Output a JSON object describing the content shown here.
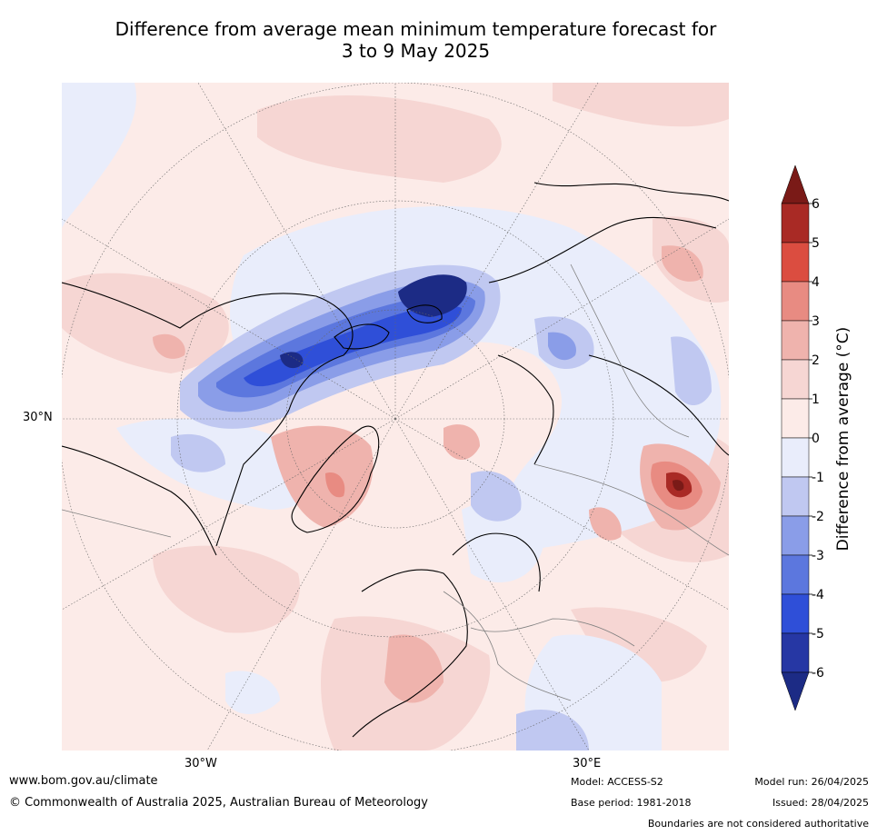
{
  "title": {
    "line1": "Difference from average mean minimum temperature forecast for",
    "line2": "3 to 9 May 2025"
  },
  "map": {
    "projection": "north-polar-stereographic",
    "lat_label": "30°N",
    "lon_labels": [
      "30°W",
      "30°E"
    ],
    "colors": {
      "ocean_base": "#fcebe8",
      "land_line": "#000000",
      "boundary_line": "#808080",
      "grid_line": "#666666"
    }
  },
  "colorbar": {
    "label": "Difference from average (°C)",
    "ticks": [
      "6",
      "5",
      "4",
      "3",
      "2",
      "1",
      "0",
      "-1",
      "-2",
      "-3",
      "-4",
      "-5",
      "-6"
    ],
    "bins": [
      {
        "from": 6,
        "to": 7,
        "color": "#7a1a17"
      },
      {
        "from": 5,
        "to": 6,
        "color": "#a92a25"
      },
      {
        "from": 4,
        "to": 5,
        "color": "#db4d40"
      },
      {
        "from": 3,
        "to": 4,
        "color": "#e88b82"
      },
      {
        "from": 2,
        "to": 3,
        "color": "#efb3ad"
      },
      {
        "from": 1,
        "to": 2,
        "color": "#f6d6d3"
      },
      {
        "from": 0,
        "to": 1,
        "color": "#fcebe8"
      },
      {
        "from": -1,
        "to": 0,
        "color": "#e9edfb"
      },
      {
        "from": -2,
        "to": -1,
        "color": "#c0c8f1"
      },
      {
        "from": -3,
        "to": -2,
        "color": "#8a9de8"
      },
      {
        "from": -4,
        "to": -3,
        "color": "#5c77de"
      },
      {
        "from": -5,
        "to": -4,
        "color": "#2f4fd8"
      },
      {
        "from": -6,
        "to": -5,
        "color": "#2637a4"
      },
      {
        "from": -7,
        "to": -6,
        "color": "#1c2b85"
      }
    ]
  },
  "footer": {
    "website": "www.bom.gov.au/climate",
    "copyright": "© Commonwealth of Australia 2025, Australian Bureau of Meteorology",
    "model": "Model: ACCESS-S2",
    "base_period": "Base period: 1981-2018",
    "model_run": "Model run: 26/04/2025",
    "issued": "Issued: 28/04/2025",
    "boundaries_note": "Boundaries are not considered authoritative"
  }
}
